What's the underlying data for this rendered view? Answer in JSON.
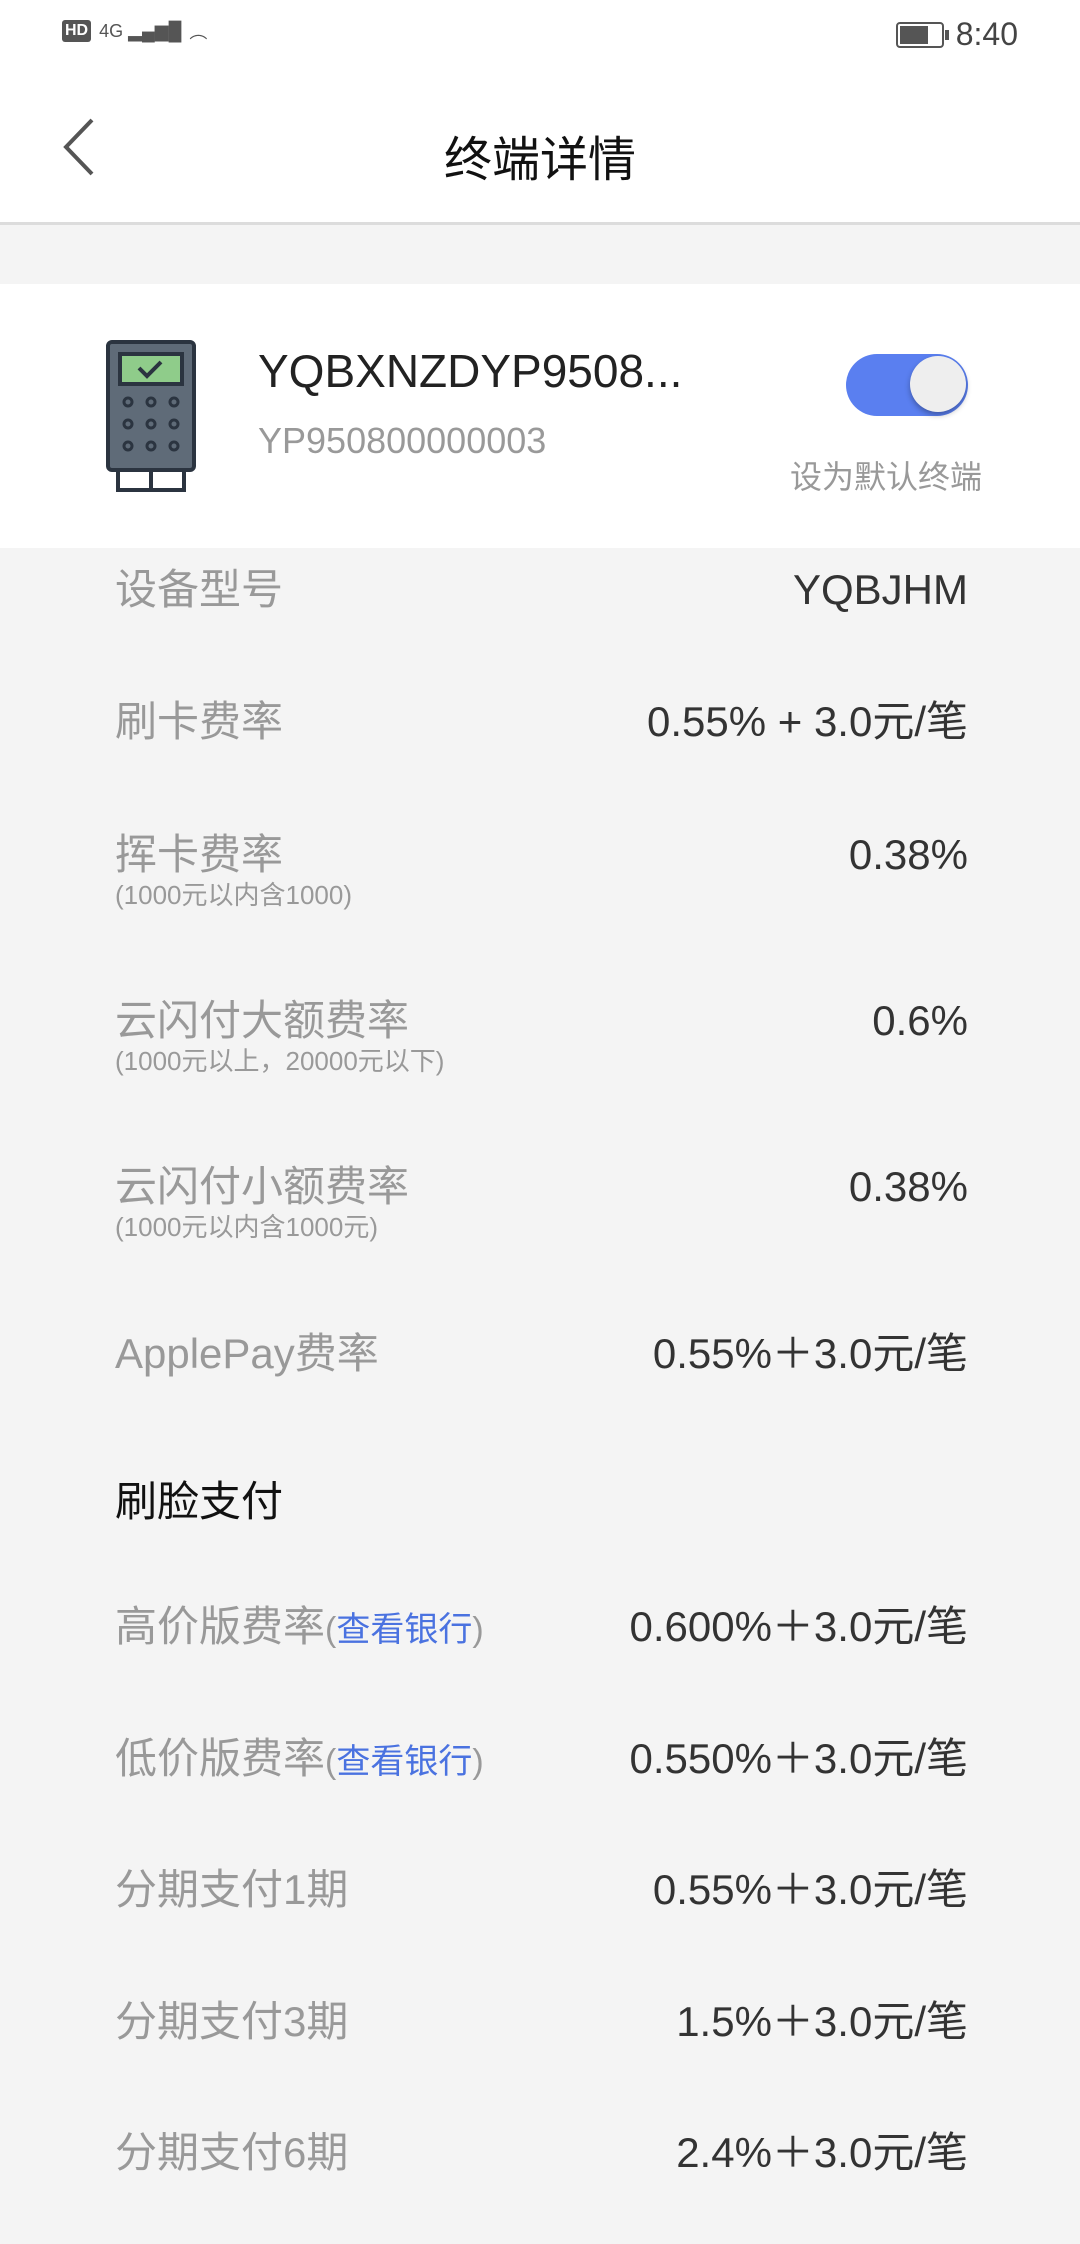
{
  "status_bar": {
    "network": "4G",
    "hd": "HD",
    "time": "8:40"
  },
  "header": {
    "title": "终端详情"
  },
  "terminal": {
    "name": "YQBXNZDYP9508...",
    "serial": "YP950800000003",
    "default_toggle_on": true,
    "default_label": "设为默认终端",
    "accent": "#5a7ff0"
  },
  "rows": [
    {
      "label": "设备型号",
      "value": "YQBJHM"
    },
    {
      "label": "刷卡费率",
      "value": "0.55% + 3.0元/笔"
    },
    {
      "label": "挥卡费率",
      "sub": "(1000元以内含1000)",
      "value": "0.38%"
    },
    {
      "label": "云闪付大额费率",
      "sub": "(1000元以上，20000元以下)",
      "value": "0.6%"
    },
    {
      "label": "云闪付小额费率",
      "sub": "(1000元以内含1000元)",
      "value": "0.38%"
    },
    {
      "label": "ApplePay费率",
      "value": "0.55%＋3.0元/笔"
    }
  ],
  "face_section": {
    "title": "刷脸支付"
  },
  "face_rows": [
    {
      "label": "高价版费率",
      "link_open": "(",
      "link": "查看银行",
      "link_close": ")",
      "value": "0.600%＋3.0元/笔"
    },
    {
      "label": "低价版费率",
      "link_open": "(",
      "link": "查看银行",
      "link_close": ")",
      "value": "0.550%＋3.0元/笔"
    }
  ],
  "installment_rows": [
    {
      "label": "分期支付1期",
      "value": "0.55%＋3.0元/笔"
    },
    {
      "label": "分期支付3期",
      "value": "1.5%＋3.0元/笔"
    },
    {
      "label": "分期支付6期",
      "value": "2.4%＋3.0元/笔"
    }
  ]
}
